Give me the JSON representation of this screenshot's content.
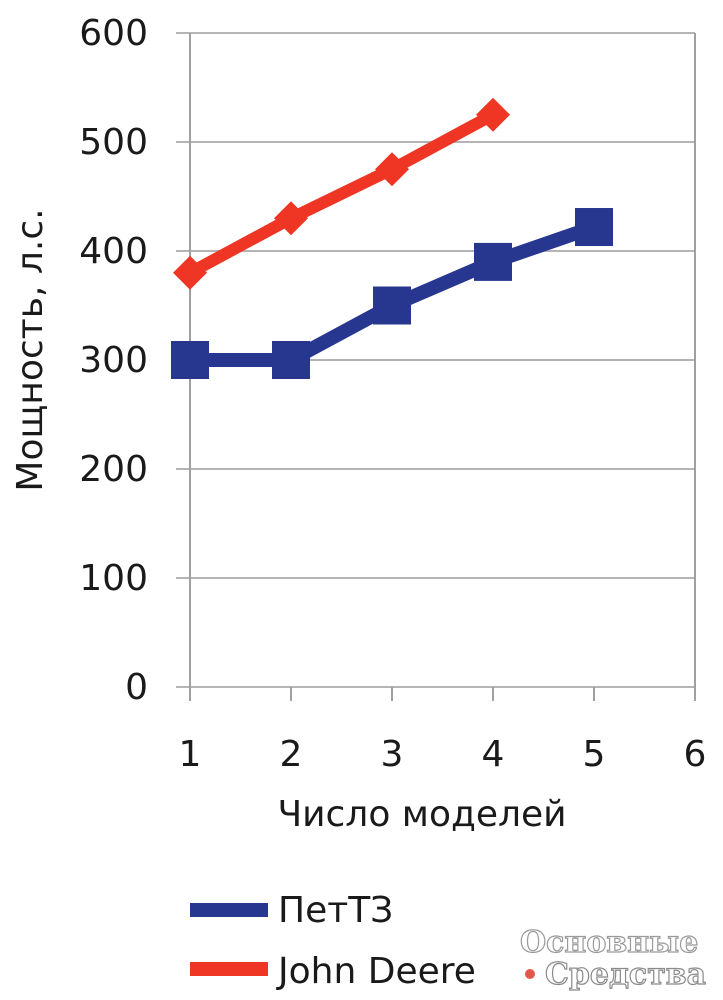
{
  "chart_data": {
    "type": "line",
    "xlabel": "Число моделей",
    "ylabel": "Мощность, л.с.",
    "xlim": [
      1,
      6
    ],
    "ylim": [
      0,
      600
    ],
    "xticks": [
      "1",
      "2",
      "3",
      "4",
      "5",
      "6"
    ],
    "yticks": [
      "0",
      "100",
      "200",
      "300",
      "400",
      "500",
      "600"
    ],
    "grid": true,
    "legend_position": "bottom-left",
    "series": [
      {
        "name": "ПетТЗ",
        "color": "#27378f",
        "marker": "square",
        "x": [
          1,
          2,
          3,
          4,
          5
        ],
        "y": [
          300,
          300,
          350,
          390,
          422
        ]
      },
      {
        "name": "John Deere",
        "color": "#ef3524",
        "marker": "diamond",
        "x": [
          1,
          2,
          3,
          4
        ],
        "y": [
          380,
          430,
          475,
          525
        ]
      }
    ]
  },
  "watermark": {
    "line1": "Основные",
    "line2": "Средства",
    "dot_color": "#e2574c"
  }
}
